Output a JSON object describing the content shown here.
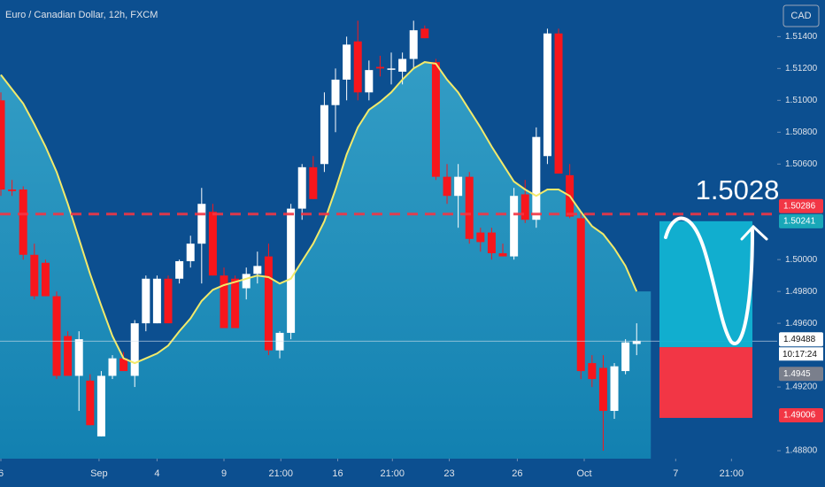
{
  "chart_data": {
    "type": "candlestick",
    "title": "Euro / Canadian Dollar, 12h, FXCM",
    "currency": "CAD",
    "x": [
      0,
      1,
      2,
      3,
      4,
      5,
      6,
      7,
      8,
      9,
      10,
      11,
      12,
      13,
      14,
      15,
      16,
      17,
      18,
      19,
      20,
      21,
      22,
      23,
      24,
      25,
      26,
      27,
      28,
      29,
      30,
      31,
      32,
      33,
      34,
      35,
      36,
      37,
      38,
      39,
      40,
      41,
      42,
      43,
      44,
      45,
      46,
      47,
      48,
      49,
      50,
      51,
      52,
      53,
      54,
      55,
      56,
      57
    ],
    "open": [
      1.51,
      1.5044,
      1.5044,
      1.5003,
      1.4998,
      1.4977,
      1.4952,
      1.4927,
      1.4924,
      1.4889,
      1.4927,
      1.4938,
      1.4927,
      1.496,
      1.496,
      1.4988,
      1.4988,
      1.4999,
      1.501,
      1.503,
      1.499,
      1.4988,
      1.4982,
      1.4991,
      1.5002,
      1.4943,
      1.4954,
      1.5032,
      1.5058,
      1.506,
      1.5097,
      1.5113,
      1.5137,
      1.5105,
      1.5121,
      1.512,
      1.5118,
      1.5126,
      1.5145,
      1.5124,
      1.5052,
      1.504,
      1.5052,
      1.5017,
      1.5017,
      1.5004,
      1.5002,
      1.5041,
      1.5025,
      1.5065,
      1.5142,
      1.5053,
      1.5026,
      1.4935,
      1.4932,
      1.4905,
      1.493,
      1.4947
    ],
    "high": [
      1.5105,
      1.505,
      1.5046,
      1.501,
      1.5,
      1.498,
      1.4955,
      1.4955,
      1.4928,
      1.493,
      1.494,
      1.4942,
      1.4962,
      1.499,
      1.499,
      1.499,
      1.5,
      1.5015,
      1.5045,
      1.5035,
      1.4995,
      1.499,
      1.4995,
      1.5005,
      1.501,
      1.4955,
      1.5035,
      1.506,
      1.5065,
      1.5105,
      1.512,
      1.514,
      1.515,
      1.5125,
      1.5128,
      1.513,
      1.513,
      1.515,
      1.5147,
      1.5126,
      1.506,
      1.506,
      1.5055,
      1.502,
      1.502,
      1.501,
      1.5045,
      1.505,
      1.5083,
      1.5145,
      1.5145,
      1.506,
      1.503,
      1.494,
      1.494,
      1.4935,
      1.495,
      1.496
    ],
    "low": [
      1.504,
      1.504,
      1.5,
      1.4975,
      1.4977,
      1.4925,
      1.4927,
      1.4905,
      1.4896,
      1.4889,
      1.4925,
      1.493,
      1.492,
      1.4955,
      1.496,
      1.496,
      1.4985,
      1.4995,
      1.4985,
      1.499,
      1.4957,
      1.4957,
      1.4975,
      1.4985,
      1.494,
      1.4938,
      1.495,
      1.5025,
      1.5038,
      1.5055,
      1.508,
      1.51,
      1.51,
      1.51,
      1.5115,
      1.511,
      1.511,
      1.512,
      1.5139,
      1.505,
      1.5035,
      1.502,
      1.501,
      1.5005,
      1.5,
      1.5002,
      1.5,
      1.5023,
      1.502,
      1.506,
      1.5054,
      1.5026,
      1.4925,
      1.492,
      1.488,
      1.49,
      1.4928,
      1.494
    ],
    "close": [
      1.5044,
      1.5043,
      1.5003,
      1.4977,
      1.4977,
      1.4927,
      1.4927,
      1.495,
      1.4896,
      1.4927,
      1.4938,
      1.493,
      1.496,
      1.4988,
      1.4988,
      1.496,
      1.4999,
      1.501,
      1.5035,
      1.499,
      1.4957,
      1.4957,
      1.4991,
      1.4996,
      1.4943,
      1.4954,
      1.5032,
      1.5058,
      1.5038,
      1.5097,
      1.5113,
      1.5135,
      1.5105,
      1.5119,
      1.512,
      1.512,
      1.5126,
      1.5144,
      1.5139,
      1.5052,
      1.504,
      1.5052,
      1.5013,
      1.5011,
      1.5004,
      1.5002,
      1.504,
      1.5025,
      1.5077,
      1.5142,
      1.5054,
      1.5027,
      1.493,
      1.4925,
      1.4905,
      1.4933,
      1.4948,
      1.4949
    ],
    "up_color": "#ffffff",
    "down_color": "#f7161c",
    "ma": {
      "color": "#f3ea6a",
      "values": [
        1.5116,
        1.5107,
        1.5098,
        1.5085,
        1.5071,
        1.5055,
        1.5035,
        1.5013,
        1.4991,
        1.4971,
        1.4952,
        1.4938,
        1.4935,
        1.4938,
        1.4941,
        1.4946,
        1.4955,
        1.4963,
        1.4974,
        1.4981,
        1.4984,
        1.4986,
        1.4988,
        1.499,
        1.4989,
        1.4985,
        1.4988,
        1.4999,
        1.501,
        1.5024,
        1.5044,
        1.5066,
        1.5083,
        1.5094,
        1.5099,
        1.5105,
        1.5113,
        1.512,
        1.5124,
        1.5123,
        1.5113,
        1.5105,
        1.5094,
        1.5083,
        1.5071,
        1.506,
        1.5049,
        1.5044,
        1.504,
        1.5044,
        1.5044,
        1.504,
        1.503,
        1.5021,
        1.5016,
        1.5007,
        1.4996,
        1.498
      ]
    },
    "xlim": [
      -0.08,
      69.6
    ],
    "xticks": [
      {
        "value": 0,
        "label": "6"
      },
      {
        "value": 8.8,
        "label": "Sep"
      },
      {
        "value": 14,
        "label": "4"
      },
      {
        "value": 20,
        "label": "9"
      },
      {
        "value": 25.1,
        "label": "21:00"
      },
      {
        "value": 30.2,
        "label": "16"
      },
      {
        "value": 35.1,
        "label": "21:00"
      },
      {
        "value": 40.2,
        "label": "23"
      },
      {
        "value": 46.3,
        "label": "26"
      },
      {
        "value": 52.3,
        "label": "Oct"
      },
      {
        "value": 60.5,
        "label": "7"
      },
      {
        "value": 65.5,
        "label": "21:00"
      }
    ],
    "ylim": [
      1.4875,
      1.5163
    ],
    "yticks": [
      {
        "value": 1.514,
        "label": "1.51400"
      },
      {
        "value": 1.512,
        "label": "1.51200"
      },
      {
        "value": 1.51,
        "label": "1.51000"
      },
      {
        "value": 1.508,
        "label": "1.50800"
      },
      {
        "value": 1.506,
        "label": "1.50600"
      },
      {
        "value": 1.5,
        "label": "1.50000"
      },
      {
        "value": 1.498,
        "label": "1.49800"
      },
      {
        "value": 1.496,
        "label": "1.49600"
      },
      {
        "value": 1.492,
        "label": "1.49200"
      },
      {
        "value": 1.488,
        "label": "1.48800"
      }
    ],
    "grid": false,
    "alert_level": 1.50286,
    "alert_color": "#f23645",
    "annotation": "1.5028",
    "last_price": 1.49488,
    "countdown": "10:17:24",
    "position": {
      "target": 1.50241,
      "entry": {
        "value": 1.4945,
        "label": "1.49450"
      },
      "stop": 1.49006,
      "profit_color": "#12b3d3",
      "loss_color": "#f23645"
    }
  }
}
